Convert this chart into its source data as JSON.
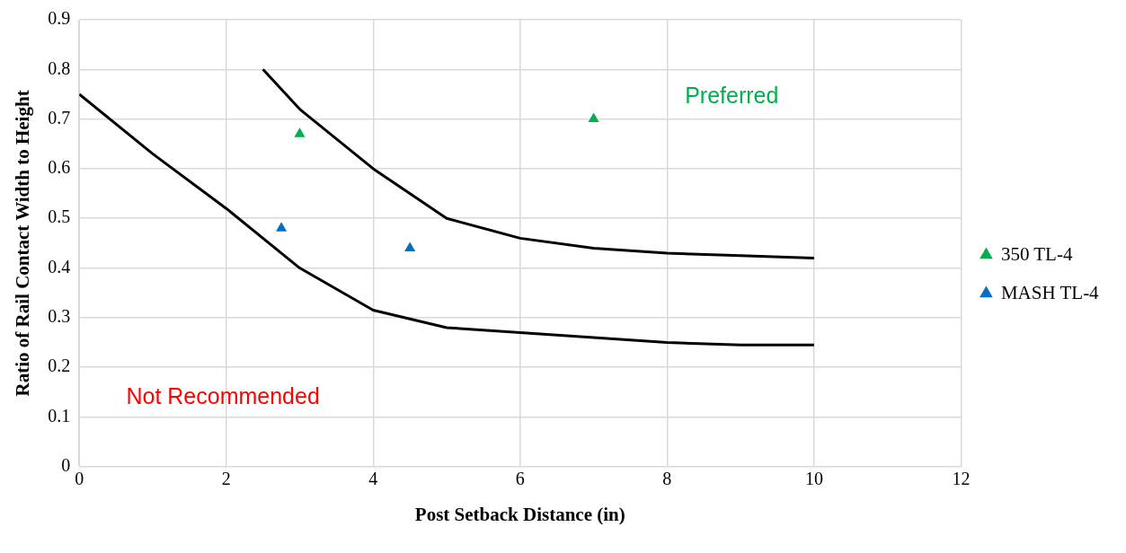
{
  "chart_data": {
    "type": "scatter",
    "xlabel": "Post Setback Distance (in)",
    "ylabel": "Ratio of Rail Contact Width to Height",
    "xlim": [
      0,
      12
    ],
    "xticks": [
      0,
      2,
      4,
      6,
      8,
      10,
      12
    ],
    "ylim": [
      0,
      0.9
    ],
    "yticks": [
      0,
      0.1,
      0.2,
      0.3,
      0.4,
      0.5,
      0.6,
      0.7,
      0.8,
      0.9
    ],
    "grid": true,
    "legend": "right",
    "series": [
      {
        "type": "line",
        "color": "#000000",
        "marker": "none",
        "line_style": "solid",
        "x": [
          2.5,
          3,
          4,
          5,
          6,
          7,
          8,
          9,
          10
        ],
        "values": [
          0.8,
          0.72,
          0.6,
          0.5,
          0.46,
          0.44,
          0.43,
          0.425,
          0.42
        ]
      },
      {
        "type": "line",
        "color": "#000000",
        "marker": "none",
        "line_style": "solid",
        "x": [
          0,
          1,
          2,
          3,
          4,
          5,
          6,
          7,
          8,
          9,
          10
        ],
        "values": [
          0.75,
          0.63,
          0.52,
          0.4,
          0.315,
          0.28,
          0.27,
          0.26,
          0.25,
          0.245,
          0.245
        ]
      },
      {
        "type": "scatter",
        "name": "350 TL-4",
        "color": "#00b050",
        "marker": "triangle",
        "x": [
          3,
          7
        ],
        "values": [
          0.67,
          0.7
        ]
      },
      {
        "type": "scatter",
        "name": "MASH TL-4",
        "color": "#0070c0",
        "marker": "triangle",
        "x": [
          2.75,
          4.5
        ],
        "values": [
          0.48,
          0.44
        ]
      }
    ],
    "annotations": [
      "Preferred",
      "Not Recommended"
    ]
  }
}
